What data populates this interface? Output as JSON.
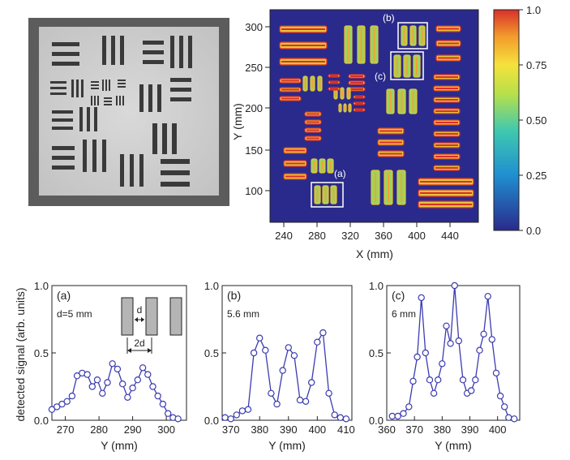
{
  "heatmap": {
    "xlabel": "X (mm)",
    "ylabel": "Y (mm)",
    "xticks": [
      "240",
      "280",
      "320",
      "360",
      "400",
      "440"
    ],
    "yticks": [
      "100",
      "150",
      "200",
      "250",
      "300"
    ],
    "colorbar_ticks": [
      "0.0",
      "0.25",
      "0.50",
      "0.75",
      "1.0"
    ],
    "box_labels": [
      "(a)",
      "(b)",
      "(c)"
    ],
    "colors": {
      "low": "#2a2a8c",
      "mid": "#3fbf8c",
      "high": "#d7302a"
    }
  },
  "chart_data": [
    {
      "type": "line",
      "panel": "(a)",
      "annotation": "d=5 mm",
      "inset_labels": [
        "d",
        "2d"
      ],
      "xlabel": "Y (mm)",
      "ylabel": "detected signal (arb. units)",
      "xlim": [
        266,
        306
      ],
      "ylim": [
        0,
        1.0
      ],
      "xticks": [
        "270",
        "280",
        "290",
        "300"
      ],
      "yticks": [
        "0.0",
        "0.5",
        "1.0"
      ],
      "x": [
        266,
        267.5,
        269,
        270.5,
        272,
        273.5,
        275,
        276.5,
        278,
        279.5,
        281,
        282.5,
        284,
        285.5,
        287,
        288.5,
        290,
        291.5,
        293,
        294.5,
        296,
        297.5,
        299,
        300.5,
        302,
        303.5
      ],
      "y": [
        0.08,
        0.1,
        0.12,
        0.14,
        0.18,
        0.33,
        0.35,
        0.34,
        0.25,
        0.3,
        0.2,
        0.28,
        0.42,
        0.38,
        0.27,
        0.17,
        0.24,
        0.3,
        0.39,
        0.34,
        0.25,
        0.18,
        0.12,
        0.05,
        0.02,
        0.01
      ]
    },
    {
      "type": "line",
      "panel": "(b)",
      "annotation": "5.6 mm",
      "xlabel": "Y (mm)",
      "ylabel": "",
      "xlim": [
        367,
        412
      ],
      "ylim": [
        0,
        1.0
      ],
      "xticks": [
        "370",
        "380",
        "390",
        "400",
        "410"
      ],
      "yticks": [
        "0.0",
        "0.5",
        "1.0"
      ],
      "x": [
        368,
        370,
        372,
        374,
        376,
        378,
        380,
        382,
        384,
        386,
        388,
        390,
        392,
        394,
        396,
        398,
        400,
        402,
        404,
        406,
        408,
        410
      ],
      "y": [
        0.02,
        0.01,
        0.04,
        0.07,
        0.08,
        0.5,
        0.61,
        0.52,
        0.2,
        0.12,
        0.37,
        0.54,
        0.48,
        0.15,
        0.14,
        0.28,
        0.58,
        0.65,
        0.2,
        0.04,
        0.02,
        0.01
      ]
    },
    {
      "type": "line",
      "panel": "(c)",
      "annotation": "6 mm",
      "xlabel": "Y (mm)",
      "ylabel": "",
      "xlim": [
        360,
        408
      ],
      "ylim": [
        0,
        1.0
      ],
      "xticks": [
        "360",
        "370",
        "380",
        "390",
        "400"
      ],
      "yticks": [
        "0.0",
        "0.5",
        "1.0"
      ],
      "x": [
        362,
        364,
        366,
        368,
        369.5,
        371,
        372.5,
        374,
        375.5,
        377,
        378.5,
        380,
        381.5,
        383,
        384.5,
        386,
        387.5,
        389,
        390.5,
        392,
        393.5,
        395,
        396.5,
        398,
        399.5,
        401,
        402.5,
        404,
        406
      ],
      "y": [
        0.03,
        0.03,
        0.05,
        0.1,
        0.29,
        0.47,
        0.91,
        0.5,
        0.3,
        0.2,
        0.3,
        0.42,
        0.7,
        0.57,
        1.0,
        0.59,
        0.3,
        0.2,
        0.22,
        0.3,
        0.52,
        0.64,
        0.92,
        0.6,
        0.35,
        0.18,
        0.1,
        0.02,
        0.01
      ]
    }
  ]
}
